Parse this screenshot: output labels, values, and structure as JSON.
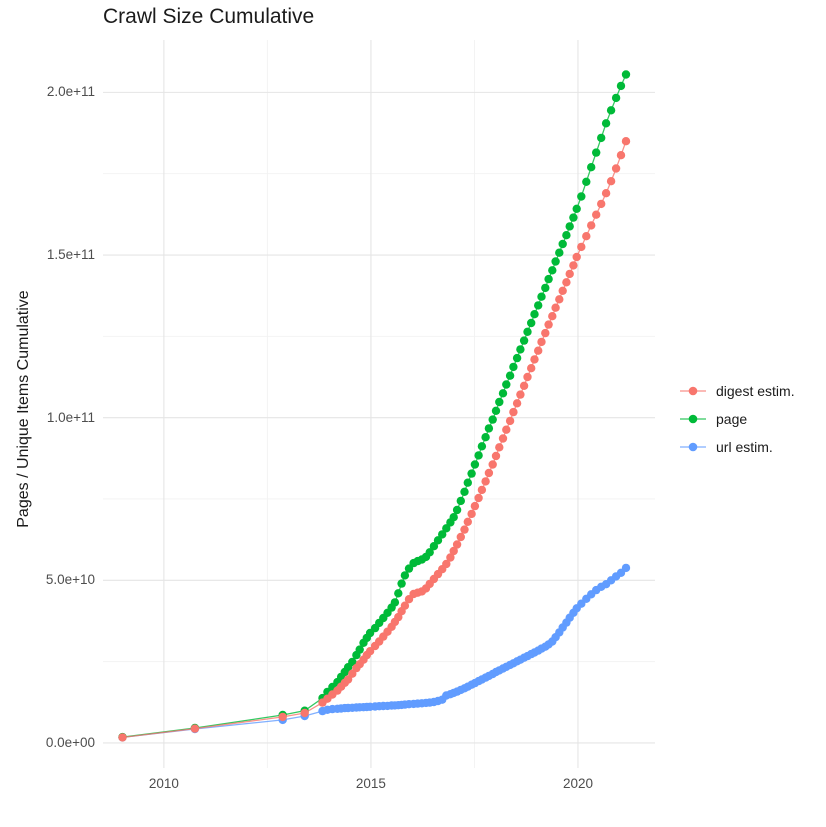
{
  "chart_data": {
    "type": "scatter",
    "title": "Crawl Size Cumulative",
    "xlabel": "",
    "ylabel": "Pages / Unique Items Cumulative",
    "legend_position": "right",
    "grid": true,
    "background": "#FFFFFF",
    "values_unit": "billions (1e9) of items",
    "xlim": [
      2008.53,
      2021.86
    ],
    "ylim_e9": [
      -7.7,
      216.1
    ],
    "x_ticks": [
      {
        "value": 2010,
        "label": "2010"
      },
      {
        "value": 2015,
        "label": "2015"
      },
      {
        "value": 2020,
        "label": "2020"
      }
    ],
    "x_minor_ticks": [
      2012.5,
      2017.5
    ],
    "y_ticks": [
      {
        "value_e9": 0,
        "label": "0.0e+00"
      },
      {
        "value_e9": 50,
        "label": "5.0e+10"
      },
      {
        "value_e9": 100,
        "label": "1.0e+11"
      },
      {
        "value_e9": 150,
        "label": "1.5e+11"
      },
      {
        "value_e9": 200,
        "label": "2.0e+11"
      }
    ],
    "y_minor_ticks_e9": [
      25,
      75,
      125,
      175
    ],
    "x": [
      2009.0,
      2010.75,
      2012.87,
      2013.4,
      2013.83,
      2013.95,
      2014.07,
      2014.19,
      2014.28,
      2014.37,
      2014.45,
      2014.55,
      2014.65,
      2014.73,
      2014.82,
      2014.9,
      2014.98,
      2015.1,
      2015.2,
      2015.3,
      2015.4,
      2015.5,
      2015.58,
      2015.66,
      2015.74,
      2015.82,
      2015.92,
      2016.03,
      2016.13,
      2016.23,
      2016.33,
      2016.42,
      2016.52,
      2016.62,
      2016.72,
      2016.82,
      2016.92,
      2017.0,
      2017.08,
      2017.17,
      2017.26,
      2017.34,
      2017.43,
      2017.51,
      2017.6,
      2017.68,
      2017.77,
      2017.85,
      2017.94,
      2018.02,
      2018.1,
      2018.19,
      2018.27,
      2018.36,
      2018.44,
      2018.53,
      2018.61,
      2018.7,
      2018.78,
      2018.87,
      2018.95,
      2019.04,
      2019.12,
      2019.21,
      2019.29,
      2019.38,
      2019.46,
      2019.55,
      2019.63,
      2019.72,
      2019.8,
      2019.89,
      2019.97,
      2020.08,
      2020.2,
      2020.32,
      2020.44,
      2020.56,
      2020.68,
      2020.8,
      2020.92,
      2021.04,
      2021.16
    ],
    "series": [
      {
        "name": "digest estim.",
        "color": "#F8766D",
        "values_e9": [
          1.7,
          4.4,
          8.0,
          9.2,
          12.4,
          13.6,
          14.9,
          16.1,
          17.3,
          18.5,
          19.5,
          21.3,
          23.0,
          24.2,
          25.6,
          27.0,
          28.2,
          29.8,
          31.2,
          32.7,
          34.2,
          35.7,
          37.2,
          38.7,
          40.5,
          42.2,
          44.2,
          45.8,
          46.2,
          46.6,
          47.5,
          48.9,
          50.4,
          51.9,
          53.4,
          55.0,
          57.0,
          59.0,
          61.0,
          63.3,
          65.6,
          68.0,
          70.4,
          72.8,
          75.3,
          77.8,
          80.4,
          83.0,
          85.6,
          88.2,
          90.9,
          93.6,
          96.3,
          99.0,
          101.7,
          104.4,
          107.1,
          109.8,
          112.5,
          115.2,
          117.9,
          120.6,
          123.3,
          126.0,
          128.6,
          131.2,
          133.8,
          136.4,
          139.0,
          141.6,
          144.2,
          146.8,
          149.4,
          152.5,
          155.8,
          159.1,
          162.4,
          165.7,
          169.0,
          172.7,
          176.6,
          180.7,
          185.0
        ]
      },
      {
        "name": "page",
        "color": "#00BA38",
        "values_e9": [
          1.8,
          4.6,
          8.6,
          9.9,
          13.8,
          15.7,
          17.2,
          18.7,
          20.3,
          21.8,
          23.3,
          24.9,
          27.0,
          28.7,
          30.8,
          32.3,
          33.8,
          35.3,
          36.9,
          38.4,
          40.0,
          41.6,
          43.2,
          46.0,
          49.0,
          51.5,
          53.6,
          55.3,
          55.9,
          56.4,
          57.2,
          58.6,
          60.5,
          62.3,
          64.1,
          66.0,
          67.8,
          69.4,
          71.6,
          74.4,
          77.2,
          80.0,
          82.8,
          85.6,
          88.4,
          91.2,
          94.0,
          96.7,
          99.4,
          102.1,
          104.8,
          107.5,
          110.2,
          112.9,
          115.6,
          118.3,
          121.0,
          123.7,
          126.4,
          129.1,
          131.8,
          134.5,
          137.2,
          139.9,
          142.6,
          145.3,
          148.0,
          150.7,
          153.4,
          156.1,
          158.8,
          161.5,
          164.2,
          168.0,
          172.5,
          177.0,
          181.5,
          186.0,
          190.5,
          194.5,
          198.3,
          202.0,
          205.5
        ]
      },
      {
        "name": "url estim.",
        "color": "#619CFF",
        "values_e9": [
          1.7,
          4.3,
          7.1,
          8.3,
          9.8,
          10.2,
          10.4,
          10.5,
          10.6,
          10.7,
          10.75,
          10.8,
          10.9,
          10.95,
          11.0,
          11.05,
          11.1,
          11.2,
          11.3,
          11.35,
          11.4,
          11.5,
          11.55,
          11.6,
          11.7,
          11.8,
          11.9,
          12.0,
          12.1,
          12.2,
          12.3,
          12.4,
          12.6,
          12.9,
          13.3,
          14.6,
          15.0,
          15.4,
          15.8,
          16.3,
          16.8,
          17.3,
          17.9,
          18.4,
          19.0,
          19.5,
          20.1,
          20.6,
          21.2,
          21.8,
          22.3,
          22.9,
          23.4,
          24.0,
          24.5,
          25.1,
          25.6,
          26.2,
          26.7,
          27.3,
          27.8,
          28.4,
          29.0,
          29.6,
          30.3,
          31.2,
          32.5,
          34.0,
          35.5,
          37.0,
          38.5,
          40.0,
          41.4,
          42.8,
          44.3,
          45.7,
          47.0,
          48.0,
          48.8,
          50.0,
          51.2,
          52.3,
          53.8
        ]
      }
    ]
  },
  "styles": {
    "grid_major": "#E5E5E5",
    "grid_minor": "#F2F2F2",
    "tick_label_color": "#4D4D4D",
    "title_color": "#1B1B1B"
  }
}
